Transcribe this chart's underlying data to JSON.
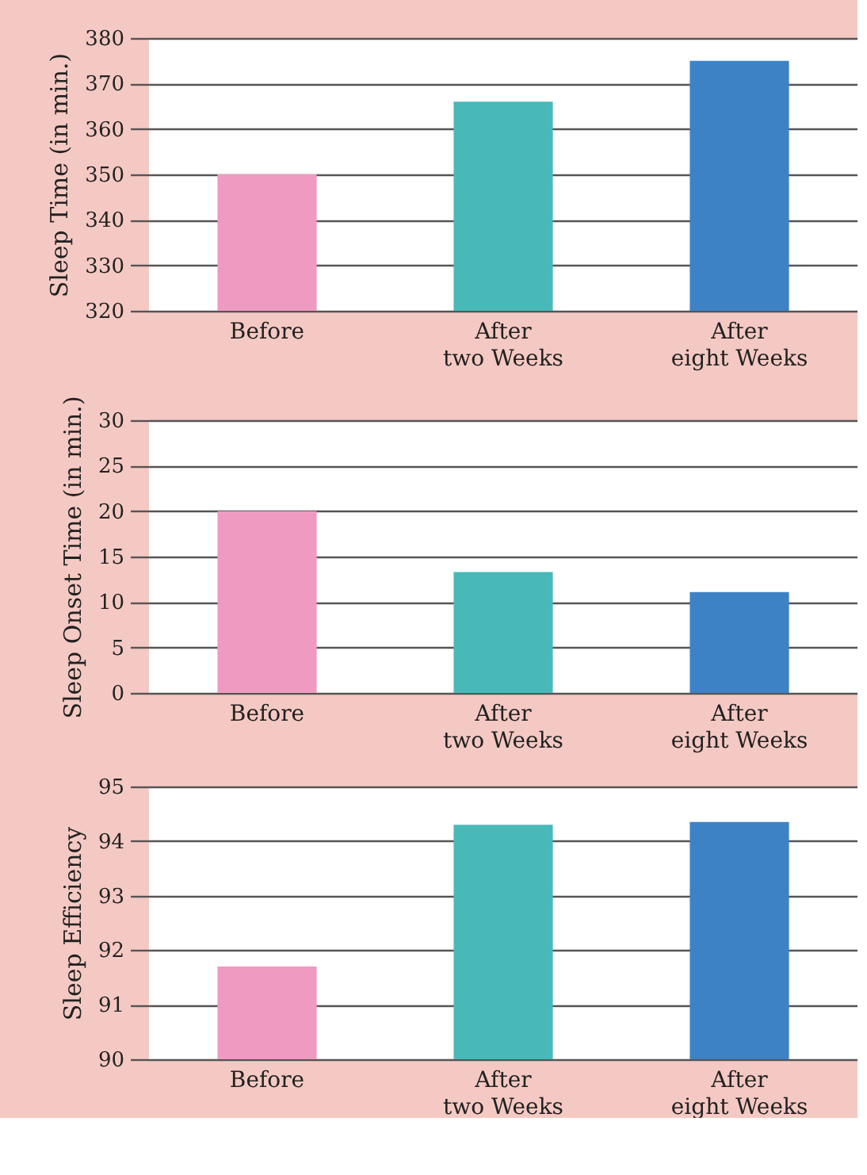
{
  "chart_data": [
    {
      "type": "bar",
      "categories": [
        "Before",
        "After two Weeks",
        "After eight Weeks"
      ],
      "values": [
        350,
        366,
        375
      ],
      "colors": [
        "#ee9ac1",
        "#48b9b8",
        "#3e82c6"
      ],
      "ylabel": "Sleep Time (in min.)",
      "ylim": [
        320,
        380
      ],
      "yticks": [
        320,
        330,
        340,
        350,
        360,
        370,
        380
      ],
      "grid": "y"
    },
    {
      "type": "bar",
      "categories": [
        "Before",
        "After two Weeks",
        "After eight Weeks"
      ],
      "values": [
        20,
        13.3,
        11.1
      ],
      "colors": [
        "#ee9ac1",
        "#48b9b8",
        "#3e82c6"
      ],
      "ylabel": "Sleep Onset Time (in min.)",
      "ylim": [
        0,
        30
      ],
      "yticks": [
        0,
        5,
        10,
        15,
        20,
        25,
        30
      ],
      "grid": "y"
    },
    {
      "type": "bar",
      "categories": [
        "Before",
        "After two Weeks",
        "After eight Weeks"
      ],
      "values": [
        91.7,
        94.3,
        94.35
      ],
      "colors": [
        "#ee9ac1",
        "#48b9b8",
        "#3e82c6"
      ],
      "ylabel": "Sleep Efficiency",
      "ylim": [
        90,
        95
      ],
      "yticks": [
        90,
        91,
        92,
        93,
        94,
        95
      ],
      "grid": "y"
    }
  ]
}
